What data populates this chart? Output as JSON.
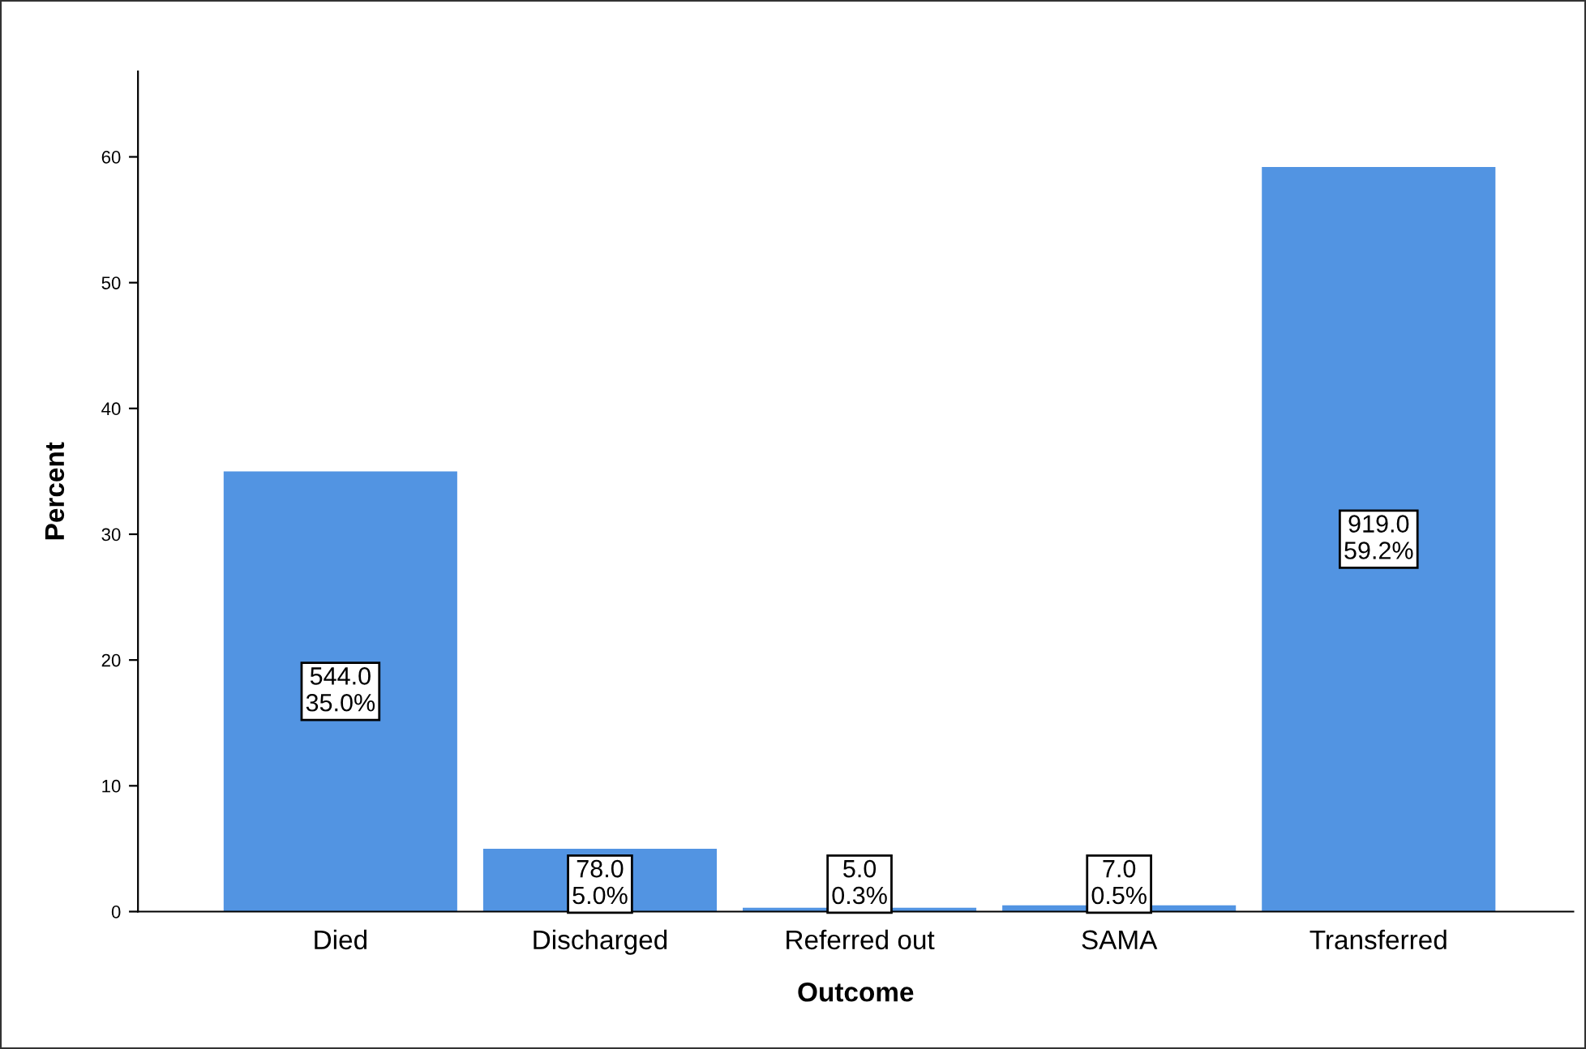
{
  "chart_data": {
    "type": "bar",
    "xlabel": "Outcome",
    "ylabel": "Percent",
    "categories": [
      "Died",
      "Discharged",
      "Referred out",
      "SAMA",
      "Transferred"
    ],
    "values": [
      35.0,
      5.0,
      0.3,
      0.5,
      59.2
    ],
    "value_labels": [
      "544.0\n35.0%",
      "78.0\n5.0%",
      "5.0\n0.3%",
      "7.0\n0.5%",
      "919.0\n59.2%"
    ],
    "color": "#5294e2",
    "ylim": [
      0,
      66.8
    ],
    "yticks": [
      0,
      10,
      20,
      30,
      40,
      50,
      60
    ],
    "grid": false
  }
}
